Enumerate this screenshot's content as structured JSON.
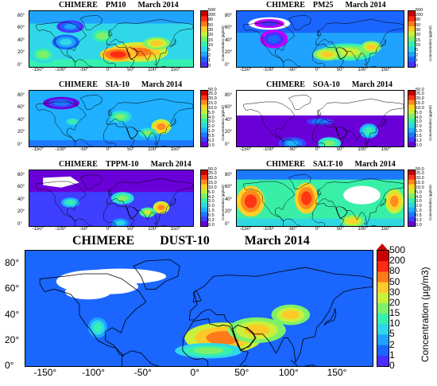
{
  "chart_data": [
    {
      "type": "heatmap",
      "model": "CHIMERE",
      "species": "PM10",
      "period": "March 2014",
      "colorbar_levels": [
        "500",
        "200",
        "80",
        "50",
        "30",
        "20",
        "15",
        "10",
        "5",
        "2",
        "1",
        "0"
      ],
      "colorbar_unit": "Concentration (µg/m3)",
      "y_ticks": [
        "80°",
        "60°",
        "40°",
        "20°",
        "0°"
      ],
      "x_ticks": [
        "-150°",
        "-100°",
        "-50°",
        "0°",
        "50°",
        "100°",
        "150°"
      ],
      "fields": [
        {
          "lon_c": 60,
          "lat_c": 24,
          "rx": 65,
          "ry": 16,
          "level": 10
        },
        {
          "lon_c": 15,
          "lat_c": 20,
          "rx": 40,
          "ry": 12,
          "level": 11
        },
        {
          "lon_c": 100,
          "lat_c": 38,
          "rx": 30,
          "ry": 10,
          "level": 9
        },
        {
          "lon_c": -100,
          "lat_c": 40,
          "rx": 30,
          "ry": 12,
          "level": 5
        },
        {
          "lon_c": -150,
          "lat_c": 20,
          "rx": 30,
          "ry": 14,
          "level": 7
        },
        {
          "lon_c": -20,
          "lat_c": 50,
          "rx": 30,
          "ry": 14,
          "level": 7
        },
        {
          "lon_c": -90,
          "lat_c": 65,
          "rx": 30,
          "ry": 10,
          "level": 4
        }
      ]
    },
    {
      "type": "heatmap",
      "model": "CHIMERE",
      "species": "PM25",
      "period": "March 2014",
      "colorbar_levels": [
        "500",
        "200",
        "80",
        "50",
        "30",
        "20",
        "15",
        "10",
        "5",
        "2",
        "1",
        "0"
      ],
      "colorbar_unit": "Concentration (µg/m3)",
      "y_ticks": [
        "80°",
        "60°",
        "40°",
        "20°",
        "0°"
      ],
      "x_ticks": [
        "-150°",
        "-100°",
        "-50°",
        "0°",
        "50°",
        "100°",
        "150°"
      ],
      "fields": [
        {
          "lon_c": 60,
          "lat_c": 24,
          "rx": 60,
          "ry": 14,
          "level": 8
        },
        {
          "lon_c": 110,
          "lat_c": 32,
          "rx": 22,
          "ry": 10,
          "level": 9
        },
        {
          "lon_c": 15,
          "lat_c": 20,
          "rx": 30,
          "ry": 10,
          "level": 9
        },
        {
          "lon_c": -100,
          "lat_c": 45,
          "rx": 30,
          "ry": 15,
          "level": 3
        },
        {
          "lon_c": -110,
          "lat_c": 70,
          "rx": 45,
          "ry": 10,
          "level": 2
        }
      ]
    },
    {
      "type": "heatmap",
      "model": "CHIMERE",
      "species": "SIA-10",
      "period": "March 2014",
      "colorbar_levels": [
        "50.0",
        "25.0",
        "20.0",
        "15.0",
        "10.0",
        "5.0",
        "4.0",
        "3.0",
        "2.0",
        "1.0",
        "0.5",
        "0.2",
        "0.0"
      ],
      "colorbar_unit": "Concentration (µg/m3)",
      "y_ticks": [
        "80°",
        "60°",
        "40°",
        "20°",
        "0°"
      ],
      "x_ticks": [
        "-150°",
        "-100°",
        "-50°",
        "0°",
        "50°",
        "100°",
        "150°"
      ],
      "fields": [
        {
          "lon_c": 110,
          "lat_c": 32,
          "rx": 22,
          "ry": 12,
          "level": 11
        },
        {
          "lon_c": 20,
          "lat_c": 48,
          "rx": 25,
          "ry": 10,
          "level": 8
        },
        {
          "lon_c": -85,
          "lat_c": 40,
          "rx": 20,
          "ry": 8,
          "level": 7
        },
        {
          "lon_c": 80,
          "lat_c": 22,
          "rx": 20,
          "ry": 8,
          "level": 8
        },
        {
          "lon_c": -110,
          "lat_c": 70,
          "rx": 40,
          "ry": 10,
          "level": 4
        }
      ]
    },
    {
      "type": "heatmap",
      "model": "CHIMERE",
      "species": "SOA-10",
      "period": "March 2014",
      "colorbar_levels": [
        "50.0",
        "25.0",
        "20.0",
        "15.0",
        "10.0",
        "5.0",
        "4.0",
        "3.0",
        "2.0",
        "1.0",
        "0.5",
        "0.2",
        "0.0"
      ],
      "colorbar_unit": "Concentration (µg/m3)",
      "y_ticks": [
        "80°",
        "60°",
        "40°",
        "20°",
        "0°"
      ],
      "x_ticks": [
        "-150°",
        "-100°",
        "-50°",
        "0°",
        "50°",
        "100°",
        "150°"
      ],
      "fields": [
        {
          "lon_c": 20,
          "lat_c": 5,
          "rx": 25,
          "ry": 10,
          "level": 8
        },
        {
          "lon_c": 105,
          "lat_c": 25,
          "rx": 20,
          "ry": 12,
          "level": 7
        },
        {
          "lon_c": -60,
          "lat_c": 5,
          "rx": 30,
          "ry": 10,
          "level": 5
        },
        {
          "lon_c": 0,
          "lat_c": 40,
          "rx": 40,
          "ry": 8,
          "level": 4
        }
      ]
    },
    {
      "type": "heatmap",
      "model": "CHIMERE",
      "species": "TPPM-10",
      "period": "March 2014",
      "colorbar_levels": [
        "50.0",
        "25.0",
        "20.0",
        "15.0",
        "10.0",
        "5.0",
        "4.0",
        "3.0",
        "2.0",
        "1.0",
        "0.5",
        "0.2",
        "0.0"
      ],
      "colorbar_unit": "Concentration (µg/m3)",
      "y_ticks": [
        "80°",
        "60°",
        "40°",
        "20°",
        "0°"
      ],
      "x_ticks": [
        "-150°",
        "-100°",
        "-50°",
        "0°",
        "50°",
        "100°",
        "150°"
      ],
      "fields": [
        {
          "lon_c": 110,
          "lat_c": 30,
          "rx": 18,
          "ry": 10,
          "level": 11
        },
        {
          "lon_c": 25,
          "lat_c": 45,
          "rx": 25,
          "ry": 10,
          "level": 8
        },
        {
          "lon_c": 80,
          "lat_c": 22,
          "rx": 18,
          "ry": 8,
          "level": 9
        },
        {
          "lon_c": -90,
          "lat_c": 38,
          "rx": 20,
          "ry": 8,
          "level": 7
        },
        {
          "lon_c": 20,
          "lat_c": 5,
          "rx": 20,
          "ry": 8,
          "level": 6
        }
      ]
    },
    {
      "type": "heatmap",
      "model": "CHIMERE",
      "species": "SALT-10",
      "period": "March 2014",
      "colorbar_levels": [
        "50.0",
        "25.0",
        "20.0",
        "15.0",
        "10.0",
        "5.0",
        "4.0",
        "3.0",
        "2.0",
        "1.0",
        "0.5",
        "0.2",
        "0.0"
      ],
      "colorbar_unit": "Concentration (µg/m3)",
      "y_ticks": [
        "80°",
        "60°",
        "40°",
        "20°",
        "0°"
      ],
      "x_ticks": [
        "-150°",
        "-100°",
        "-50°",
        "0°",
        "50°",
        "100°",
        "150°"
      ],
      "fields": [
        {
          "lon_c": -150,
          "lat_c": 40,
          "rx": 30,
          "ry": 25,
          "level": 12
        },
        {
          "lon_c": -30,
          "lat_c": 45,
          "rx": 25,
          "ry": 25,
          "level": 12
        },
        {
          "lon_c": 70,
          "lat_c": 8,
          "rx": 25,
          "ry": 10,
          "level": 10
        },
        {
          "lon_c": 160,
          "lat_c": 40,
          "rx": 20,
          "ry": 20,
          "level": 11
        },
        {
          "lon_c": 90,
          "lat_c": 50,
          "rx": 40,
          "ry": 15,
          "level": 1
        }
      ]
    },
    {
      "type": "heatmap",
      "model": "CHIMERE",
      "species": "DUST-10",
      "period": "March 2014",
      "colorbar_levels": [
        "500",
        "200",
        "80",
        "50",
        "30",
        "20",
        "15",
        "10",
        "5",
        "2",
        "1",
        "0"
      ],
      "colorbar_unit": "Concentration (µg/m3)",
      "y_ticks": [
        "80°",
        "60°",
        "40°",
        "20°",
        "0°"
      ],
      "x_ticks": [
        "-150°",
        "-100°",
        "-50°",
        "0°",
        "50°",
        "100°",
        "150°"
      ],
      "fields": [
        {
          "lon_c": 25,
          "lat_c": 22,
          "rx": 40,
          "ry": 12,
          "level": 10
        },
        {
          "lon_c": 60,
          "lat_c": 28,
          "rx": 30,
          "ry": 10,
          "level": 9
        },
        {
          "lon_c": 95,
          "lat_c": 40,
          "rx": 20,
          "ry": 8,
          "level": 9
        },
        {
          "lon_c": -105,
          "lat_c": 30,
          "rx": 10,
          "ry": 8,
          "level": 6
        },
        {
          "lon_c": 10,
          "lat_c": 12,
          "rx": 35,
          "ry": 6,
          "level": 7
        }
      ]
    }
  ],
  "palette": {
    "levels_12": [
      "#ffffff",
      "#c000ff",
      "#4b2fff",
      "#1a66ff",
      "#1fa3ff",
      "#2fd7e8",
      "#36f0b0",
      "#7df06a",
      "#c9f03a",
      "#ffc928",
      "#ff7a1a",
      "#ff2a14",
      "#c80000"
    ],
    "levels_13": [
      "#ffffff",
      "#ffffff",
      "#6a00d8",
      "#3f3fff",
      "#1c78ff",
      "#1fb0ff",
      "#2fd8e0",
      "#39efa8",
      "#7ff06a",
      "#c4ef3a",
      "#ffd128",
      "#ff8a1e",
      "#ff3614",
      "#c80000"
    ],
    "land_line": "#000000",
    "ice": "#ffffff"
  }
}
